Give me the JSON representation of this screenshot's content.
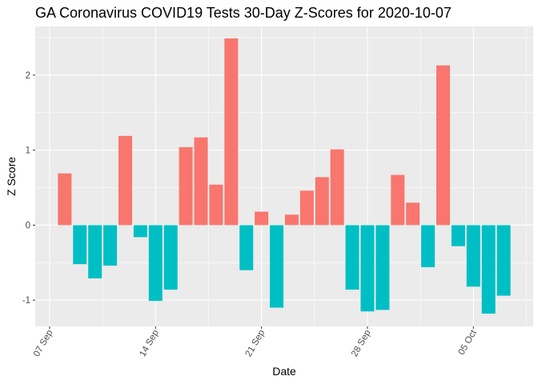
{
  "chart_data": {
    "type": "bar",
    "title": "GA Coronavirus COVID19 Tests 30-Day Z-Scores for 2020-10-07",
    "xlabel": "Date",
    "ylabel": "Z Score",
    "x_ticks": [
      {
        "label": "07 Sep",
        "day": 0
      },
      {
        "label": "14 Sep",
        "day": 7
      },
      {
        "label": "21 Sep",
        "day": 14
      },
      {
        "label": "28 Sep",
        "day": 21
      },
      {
        "label": "05 Oct",
        "day": 28
      }
    ],
    "y_ticks": [
      -1,
      0,
      1,
      2
    ],
    "ylim": [
      -1.35,
      2.65
    ],
    "xlim_days": [
      -0.95,
      31.95
    ],
    "grid": true,
    "legend": "none",
    "positive_color": "#F8766D",
    "negative_color": "#00BFC4",
    "categories": [
      "2020-09-08",
      "2020-09-09",
      "2020-09-10",
      "2020-09-11",
      "2020-09-12",
      "2020-09-13",
      "2020-09-14",
      "2020-09-15",
      "2020-09-16",
      "2020-09-17",
      "2020-09-18",
      "2020-09-19",
      "2020-09-20",
      "2020-09-21",
      "2020-09-22",
      "2020-09-23",
      "2020-09-24",
      "2020-09-25",
      "2020-09-26",
      "2020-09-27",
      "2020-09-28",
      "2020-09-29",
      "2020-09-30",
      "2020-10-01",
      "2020-10-02",
      "2020-10-03",
      "2020-10-04",
      "2020-10-05",
      "2020-10-06",
      "2020-10-07"
    ],
    "values": [
      0.69,
      -0.52,
      -0.71,
      -0.54,
      1.19,
      -0.16,
      -1.01,
      -0.86,
      1.04,
      1.17,
      0.54,
      2.49,
      -0.6,
      0.18,
      -1.1,
      0.14,
      0.46,
      0.64,
      1.01,
      -0.86,
      -1.15,
      -1.13,
      0.67,
      0.3,
      -0.56,
      2.13,
      -0.28,
      -0.82,
      -1.18,
      -0.94
    ]
  }
}
